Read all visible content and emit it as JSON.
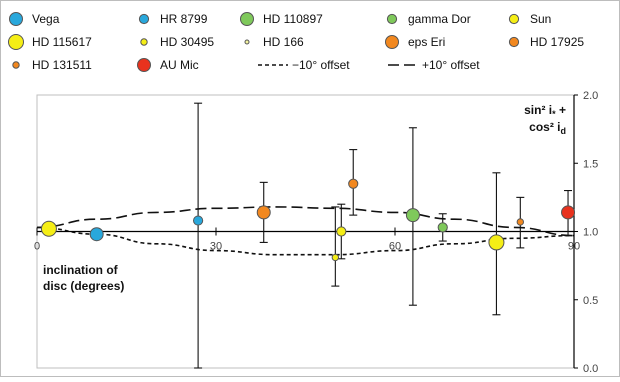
{
  "chart_data": {
    "type": "scatter",
    "xlabel": "inclination of disc (degrees)",
    "xlabel_lines": [
      "inclination of",
      "disc (degrees)"
    ],
    "ylabel_line1": "sin² i₃ +",
    "ylabel_line2": "cos² i₄",
    "ylabel": "sin² i* + cos² id",
    "xlim": [
      0,
      90
    ],
    "ylim": [
      0.0,
      2.0
    ],
    "x_ticks": [
      0,
      30,
      60,
      90
    ],
    "x_tick_labels": [
      "0",
      "30",
      "60",
      "90"
    ],
    "y_ticks": [
      0.0,
      0.5,
      1.0,
      1.5,
      2.0
    ],
    "y_tick_labels": [
      "0.0",
      "0.5",
      "1.0",
      "1.5",
      "2.0"
    ],
    "grid": false,
    "legend_position": "top",
    "series": [
      {
        "name": "Vega",
        "color": "#29a8dc",
        "size": "medium",
        "points": [
          {
            "x": 10,
            "y": 0.98
          }
        ]
      },
      {
        "name": "HR 8799",
        "color": "#29a8dc",
        "size": "small",
        "points": [
          {
            "x": 27,
            "y": 1.08,
            "err_low": 0.0,
            "err_high": 1.94
          }
        ]
      },
      {
        "name": "HD 110897",
        "color": "#7fc95b",
        "size": "medium",
        "points": [
          {
            "x": 63,
            "y": 1.12,
            "err_low": 0.46,
            "err_high": 1.76
          }
        ]
      },
      {
        "name": "gamma Dor",
        "color": "#7fc95b",
        "size": "small",
        "points": [
          {
            "x": 68,
            "y": 1.03,
            "err_low": 0.93,
            "err_high": 1.13
          }
        ]
      },
      {
        "name": "Sun",
        "color": "#f5ee16",
        "size": "small",
        "points": [
          {
            "x": 51,
            "y": 1.0,
            "err_low": 0.8,
            "err_high": 1.2
          }
        ]
      },
      {
        "name": "HD 115617",
        "color": "#f5ee16",
        "size": "large",
        "points": [
          {
            "x": 77,
            "y": 0.92,
            "err_low": 0.39,
            "err_high": 1.43
          }
        ]
      },
      {
        "name": "HD 30495",
        "color": "#f5ee16",
        "size": "tiny",
        "points": [
          {
            "x": 50,
            "y": 0.81,
            "err_low": 0.6,
            "err_high": 1.18
          }
        ]
      },
      {
        "name": "HD 166",
        "color": "#f3f3a0",
        "size": "micro",
        "points": []
      },
      {
        "name": "eps Eri",
        "color": "#f2881f",
        "size": "medium",
        "points": [
          {
            "x": 38,
            "y": 1.14,
            "err_low": 0.92,
            "err_high": 1.36
          }
        ]
      },
      {
        "name": "HD 17925",
        "color": "#f2881f",
        "size": "small",
        "points": [
          {
            "x": 53,
            "y": 1.35,
            "err_low": 1.12,
            "err_high": 1.6
          }
        ]
      },
      {
        "name": "HD 131511",
        "color": "#f2881f",
        "size": "tiny",
        "points": [
          {
            "x": 81,
            "y": 1.07,
            "err_low": 0.88,
            "err_high": 1.25
          }
        ]
      },
      {
        "name": "AU Mic",
        "color": "#e8321e",
        "size": "medium",
        "points": [
          {
            "x": 89,
            "y": 1.14,
            "err_low": 0.97,
            "err_high": 1.3
          }
        ]
      }
    ],
    "lines": [
      {
        "name": "−10° offset",
        "dash": "short",
        "x": [
          0,
          10,
          20,
          30,
          40,
          50,
          60,
          70,
          80,
          90
        ],
        "y": [
          1.03,
          0.98,
          0.91,
          0.86,
          0.83,
          0.83,
          0.86,
          0.91,
          0.95,
          0.97
        ]
      },
      {
        "name": "+10° offset",
        "dash": "long",
        "x": [
          0,
          10,
          20,
          30,
          40,
          50,
          60,
          70,
          80,
          90
        ],
        "y": [
          1.03,
          1.09,
          1.14,
          1.17,
          1.18,
          1.17,
          1.14,
          1.09,
          1.03,
          0.97
        ]
      }
    ],
    "extra_marker": {
      "series": "Sun",
      "x": 2,
      "y": 1.02,
      "size": "large"
    }
  }
}
